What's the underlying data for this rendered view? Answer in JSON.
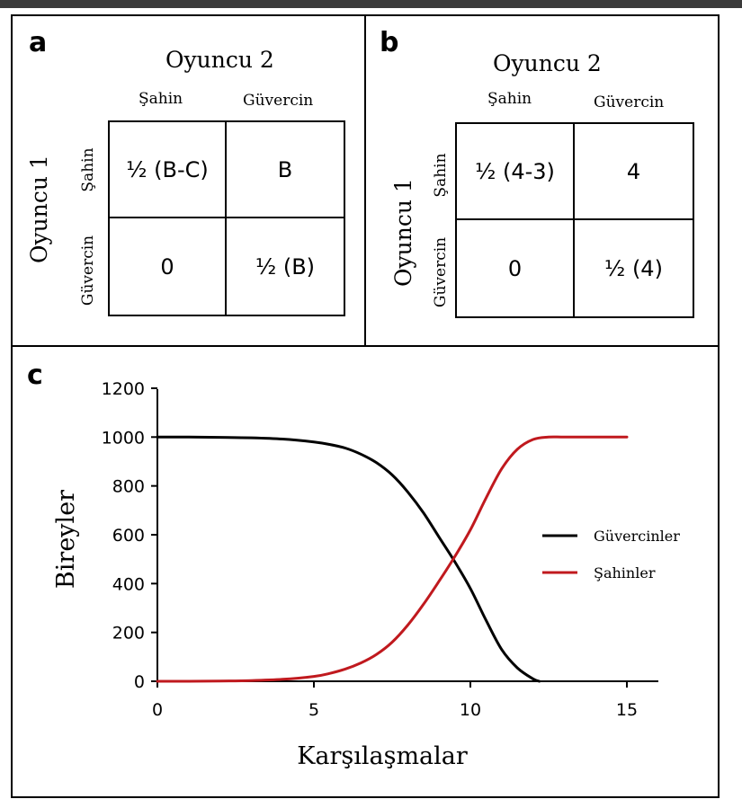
{
  "panels": {
    "a": {
      "letter": "a",
      "player2": "Oyuncu 2",
      "player1": "Oyuncu 1",
      "col_headers": [
        "Şahin",
        "Güvercin"
      ],
      "row_headers": [
        "Şahin",
        "Güvercin"
      ],
      "cells": [
        "½ (B-C)",
        "B",
        "0",
        "½ (B)"
      ]
    },
    "b": {
      "letter": "b",
      "player2": "Oyuncu 2",
      "player1": "Oyuncu 1",
      "col_headers": [
        "Şahin",
        "Güvercin"
      ],
      "row_headers": [
        "Şahin",
        "Güvercin"
      ],
      "cells": [
        "½ (4-3)",
        "4",
        "0",
        "½ (4)"
      ]
    },
    "c": {
      "letter": "c"
    }
  },
  "chart_data": {
    "type": "line",
    "xlabel": "Karşılaşmalar",
    "ylabel": "Bireyler",
    "xlim": [
      0,
      16
    ],
    "ylim": [
      0,
      1200
    ],
    "xticks": [
      0,
      5,
      10,
      15
    ],
    "yticks": [
      0,
      200,
      400,
      600,
      800,
      1000,
      1200
    ],
    "legend_position": "right",
    "series": [
      {
        "name": "Güvercinler",
        "color": "#000000",
        "x": [
          0,
          1,
          2,
          3,
          4,
          5,
          5.5,
          6,
          6.5,
          7,
          7.5,
          8,
          8.5,
          9,
          9.5,
          10,
          10.5,
          11,
          11.5,
          12,
          12.2
        ],
        "y": [
          1000,
          1000,
          999,
          997,
          992,
          980,
          970,
          955,
          930,
          895,
          845,
          775,
          690,
          590,
          490,
          380,
          250,
          130,
          55,
          10,
          0
        ]
      },
      {
        "name": "Şahinler",
        "color": "#c0191e",
        "x": [
          0,
          1,
          2,
          3,
          4,
          5,
          5.5,
          6,
          6.5,
          7,
          7.5,
          8,
          8.5,
          9,
          9.5,
          10,
          10.5,
          11,
          11.5,
          12,
          12.5,
          13,
          14,
          15
        ],
        "y": [
          0,
          0,
          1,
          3,
          8,
          20,
          32,
          50,
          75,
          110,
          160,
          230,
          315,
          410,
          510,
          620,
          750,
          870,
          950,
          990,
          1000,
          1000,
          1000,
          1000
        ]
      }
    ]
  }
}
